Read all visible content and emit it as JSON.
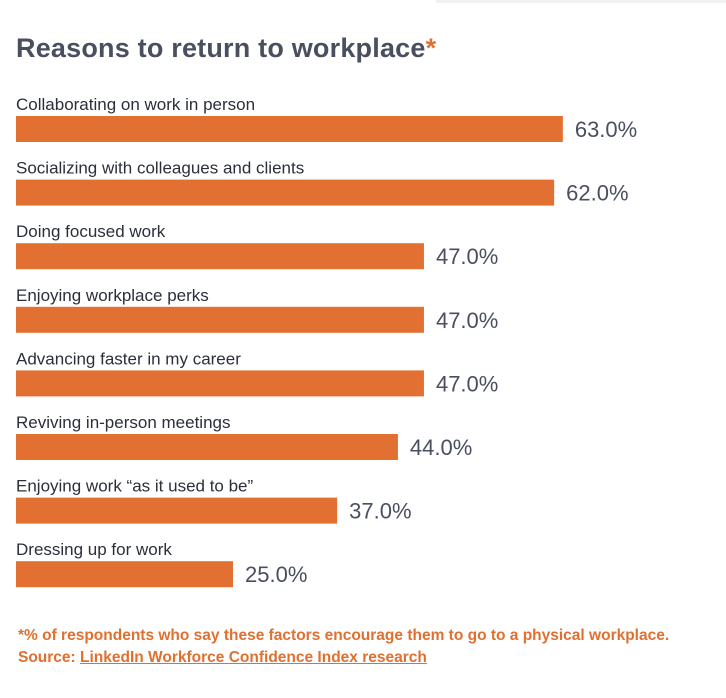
{
  "title": "Reasons to return to workplace",
  "title_marker": "*",
  "colors": {
    "bar": "#E37033",
    "title": "#4A4F60",
    "accent": "#E07030"
  },
  "chart_data": {
    "type": "bar",
    "orientation": "horizontal",
    "categories": [
      "Collaborating on work in person",
      "Socializing with colleagues and clients",
      "Doing focused work",
      "Enjoying workplace perks",
      "Advancing faster in my career",
      "Reviving in-person meetings",
      "Enjoying work “as it used to be”",
      "Dressing up for work"
    ],
    "values": [
      63.0,
      62.0,
      47.0,
      47.0,
      47.0,
      44.0,
      37.0,
      25.0
    ],
    "value_labels": [
      "63.0%",
      "62.0%",
      "47.0%",
      "47.0%",
      "47.0%",
      "44.0%",
      "37.0%",
      "25.0%"
    ],
    "unit": "%",
    "xlim": [
      0,
      100
    ],
    "grid": false,
    "legend": "none"
  },
  "footnote": {
    "text": "*% of respondents who say these factors encourage them to go to a physical workplace. Source: ",
    "link_text": "LinkedIn Workforce Confidence Index research"
  }
}
